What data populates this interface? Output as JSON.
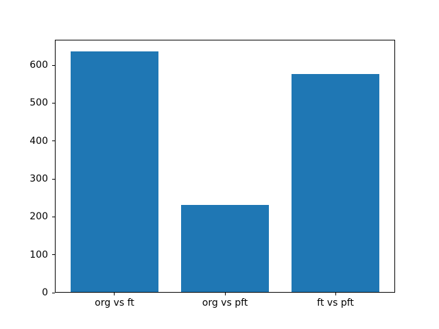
{
  "chart_data": {
    "type": "bar",
    "title": "",
    "xlabel": "",
    "ylabel": "",
    "categories": [
      "org vs ft",
      "org vs pft",
      "ft vs pft"
    ],
    "values": [
      636,
      231,
      576
    ],
    "yticks": [
      0,
      100,
      200,
      300,
      400,
      500,
      600
    ],
    "ylim": [
      0,
      667
    ],
    "bar_width_fraction": 0.8,
    "grid": false,
    "legend": null,
    "bar_color": "#1f77b4",
    "spine_color": "#000000",
    "background_color": "#ffffff"
  }
}
